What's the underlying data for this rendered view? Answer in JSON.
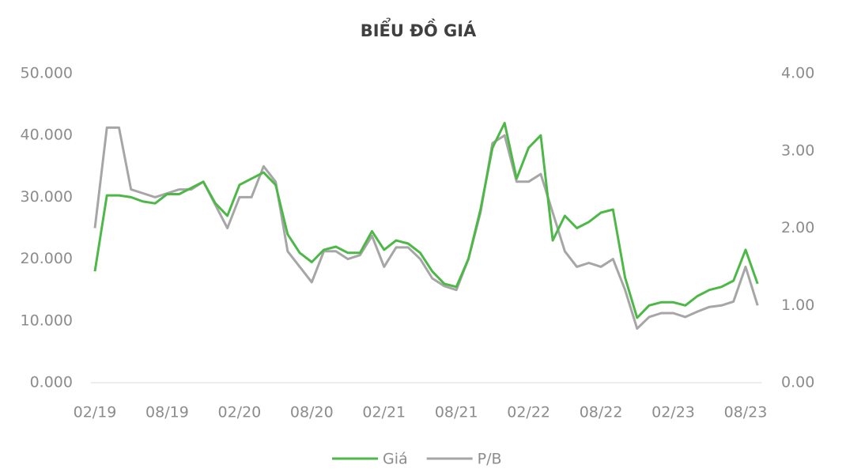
{
  "chart_data": {
    "type": "line",
    "title": "BIỂU ĐỒ GIÁ",
    "categories": [
      "02/19",
      null,
      null,
      null,
      null,
      null,
      "08/19",
      null,
      null,
      null,
      null,
      null,
      "02/20",
      null,
      null,
      null,
      null,
      null,
      "08/20",
      null,
      null,
      null,
      null,
      null,
      "02/21",
      null,
      null,
      null,
      null,
      null,
      "08/21",
      null,
      null,
      null,
      null,
      null,
      "02/22",
      null,
      null,
      null,
      null,
      null,
      "08/22",
      null,
      null,
      null,
      null,
      null,
      "02/23",
      null,
      null,
      null,
      null,
      null,
      "08/23",
      null
    ],
    "series": [
      {
        "name": "Giá",
        "color": "#4db848",
        "axis": "y",
        "values": [
          18000,
          30300,
          30300,
          30000,
          29300,
          29000,
          30500,
          30500,
          31500,
          32500,
          29000,
          27000,
          32000,
          33000,
          34000,
          32000,
          24000,
          21000,
          19500,
          21500,
          22000,
          21000,
          21000,
          24500,
          21500,
          23000,
          22500,
          21000,
          18000,
          16000,
          15500,
          20000,
          28000,
          38000,
          42000,
          33000,
          38000,
          40000,
          23000,
          27000,
          25000,
          26000,
          27500,
          28000,
          17000,
          10500,
          12500,
          13000,
          13000,
          12500,
          14000,
          15000,
          15500,
          16500,
          21500,
          16000
        ]
      },
      {
        "name": "P/B",
        "color": "#a6a6a6",
        "axis": "y2",
        "values": [
          2.0,
          3.3,
          3.3,
          2.5,
          2.45,
          2.4,
          2.45,
          2.5,
          2.5,
          2.6,
          2.3,
          2.0,
          2.4,
          2.4,
          2.8,
          2.6,
          1.7,
          1.5,
          1.3,
          1.7,
          1.7,
          1.6,
          1.65,
          1.9,
          1.5,
          1.75,
          1.75,
          1.6,
          1.35,
          1.25,
          1.2,
          1.6,
          2.2,
          3.1,
          3.2,
          2.6,
          2.6,
          2.7,
          2.2,
          1.7,
          1.5,
          1.55,
          1.5,
          1.6,
          1.2,
          0.7,
          0.85,
          0.9,
          0.9,
          0.85,
          0.92,
          0.98,
          1.0,
          1.05,
          1.5,
          1.0
        ]
      }
    ],
    "ylim": [
      0,
      50000
    ],
    "yticks": [
      {
        "value": 0,
        "label": "0.000"
      },
      {
        "value": 10000,
        "label": "10.000"
      },
      {
        "value": 20000,
        "label": "20.000"
      },
      {
        "value": 30000,
        "label": "30.000"
      },
      {
        "value": 40000,
        "label": "40.000"
      },
      {
        "value": 50000,
        "label": "50.000"
      }
    ],
    "y2lim": [
      0,
      4
    ],
    "y2ticks": [
      {
        "value": 0,
        "label": "0.00"
      },
      {
        "value": 1,
        "label": "1.00"
      },
      {
        "value": 2,
        "label": "2.00"
      },
      {
        "value": 3,
        "label": "3.00"
      },
      {
        "value": 4,
        "label": "4.00"
      }
    ],
    "legend": "bottom"
  }
}
